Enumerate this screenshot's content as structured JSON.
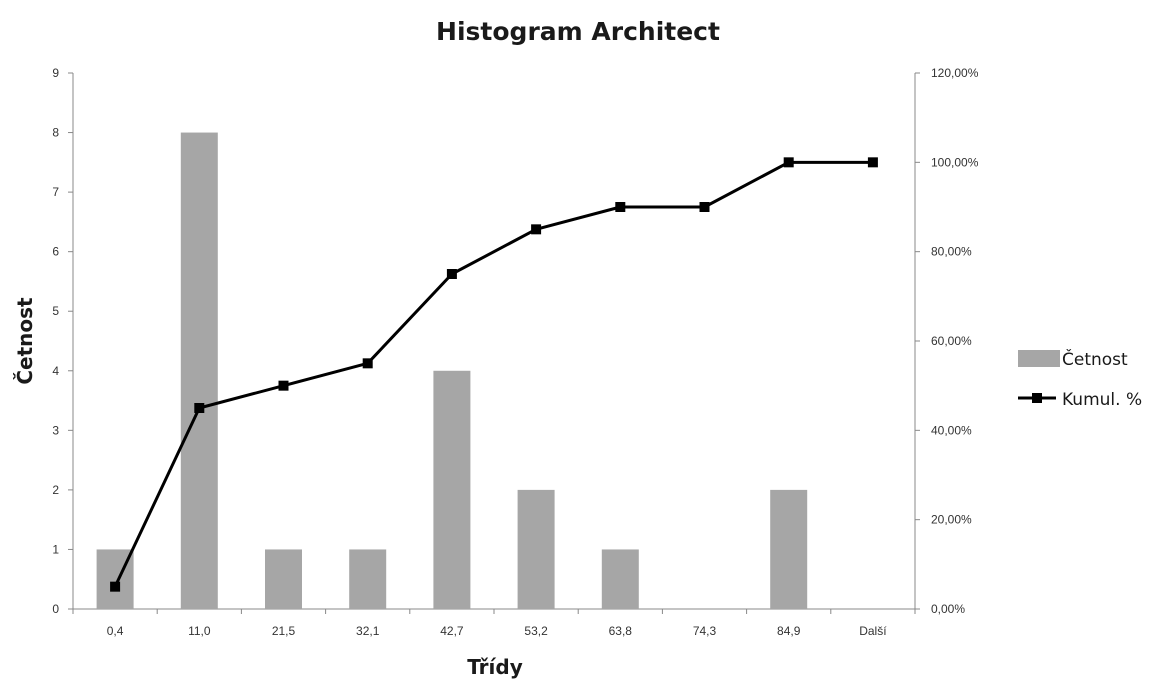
{
  "chart_data": {
    "type": "bar",
    "title": "Histogram Architect",
    "xlabel": "Třídy",
    "ylabel": "Četnost",
    "categories": [
      "0,4",
      "11,0",
      "21,5",
      "32,1",
      "42,7",
      "53,2",
      "63,8",
      "74,3",
      "84,9",
      "Další"
    ],
    "series": [
      {
        "name": "Četnost",
        "type": "bar",
        "axis": "left",
        "color": "#a6a6a6",
        "values": [
          1,
          8,
          1,
          1,
          4,
          2,
          1,
          0,
          2,
          0
        ]
      },
      {
        "name": "Kumul. %",
        "type": "line",
        "axis": "right",
        "color": "#000000",
        "marker": "square",
        "values": [
          5.0,
          45.0,
          50.0,
          55.0,
          75.0,
          85.0,
          90.0,
          90.0,
          100.0,
          100.0
        ]
      }
    ],
    "ylim": [
      0,
      9
    ],
    "yticks": [
      "0",
      "1",
      "2",
      "3",
      "4",
      "5",
      "6",
      "7",
      "8",
      "9"
    ],
    "y2lim": [
      0,
      120
    ],
    "y2ticks": [
      "0,00%",
      "20,00%",
      "40,00%",
      "60,00%",
      "80,00%",
      "100,00%",
      "120,00%"
    ],
    "grid": false,
    "legend_position": "right"
  }
}
